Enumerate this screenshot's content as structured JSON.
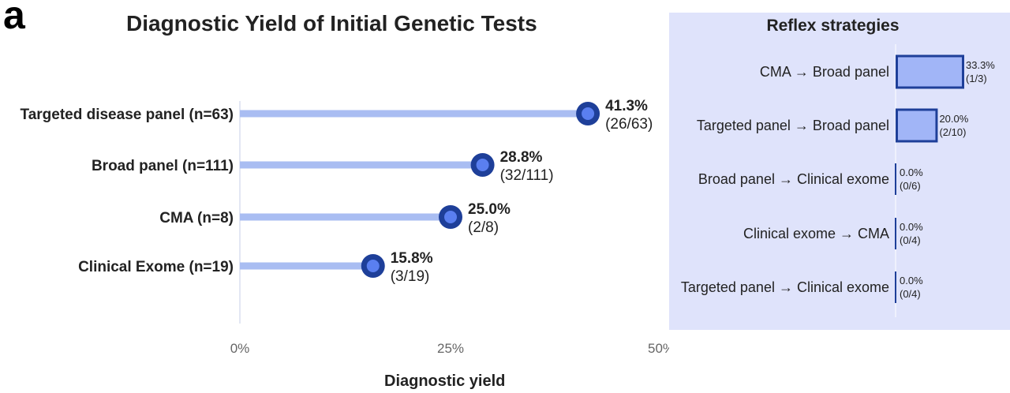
{
  "panel_letter": "a",
  "chart_data": [
    {
      "type": "lollipop",
      "title": "Diagnostic Yield of Initial Genetic Tests",
      "xlabel": "Diagnostic yield",
      "xlim": [
        0,
        50
      ],
      "xticks": [
        "0%",
        "25%",
        "50%"
      ],
      "tick_values": [
        0,
        25,
        50
      ],
      "categories": [
        "Targeted disease panel (n=63)",
        "Broad panel (n=111)",
        "CMA (n=8)",
        "Clinical Exome (n=19)"
      ],
      "values": [
        41.3,
        28.8,
        25.0,
        15.8
      ],
      "pct_labels": [
        "41.3%",
        "28.8%",
        "25.0%",
        "15.8%"
      ],
      "fraction_labels": [
        "(26/63)",
        "(32/111)",
        "(2/8)",
        "(3/19)"
      ],
      "colors": {
        "stem": "#a9bdf2",
        "dot_outer": "#1e3f99",
        "dot_inner": "#5a7ff0"
      }
    },
    {
      "type": "bar",
      "orientation": "horizontal",
      "title": "Reflex strategies",
      "categories": [
        "CMA → Broad panel",
        "Targeted panel → Broad panel",
        "Broad panel → Clinical exome",
        "Clinical exome → CMA",
        "Targeted panel → Clinical exome"
      ],
      "values": [
        33.3,
        20.0,
        0.0,
        0.0,
        0.0
      ],
      "pct_labels": [
        "33.3%",
        "20.0%",
        "0.0%",
        "0.0%",
        "0.0%"
      ],
      "fraction_labels": [
        "(1/3)",
        "(2/10)",
        "(0/6)",
        "(0/4)",
        "(0/4)"
      ],
      "colors": {
        "panel_bg": "#dfe3fb",
        "bar_fill": "#a1b5f7",
        "bar_edge": "#1e3f99"
      }
    }
  ]
}
